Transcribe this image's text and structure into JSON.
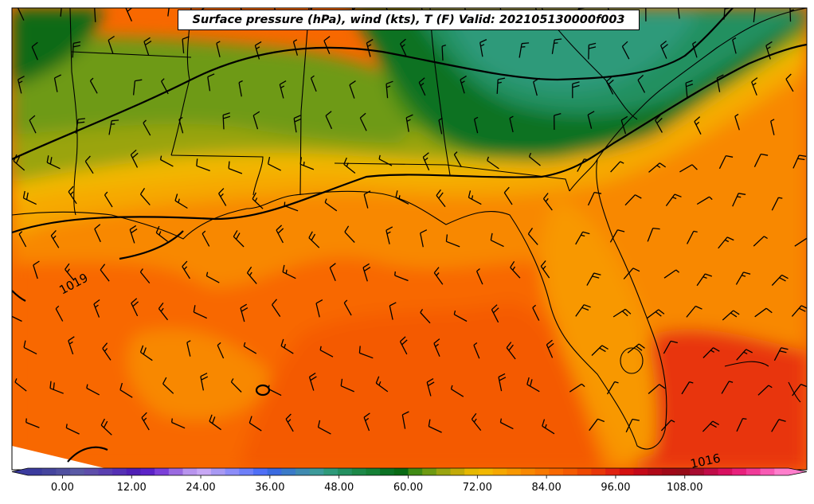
{
  "title": "Surface pressure (hPa), wind (kts), T (F) Valid: 202105130000f003",
  "isobar_labels": [
    {
      "id": "isobar-1019",
      "text": "1019"
    },
    {
      "id": "isobar-1016",
      "text": "1016"
    }
  ],
  "colorbar": {
    "min": -6,
    "max": 126,
    "step": 3,
    "tick_values": [
      0,
      12,
      24,
      36,
      48,
      60,
      72,
      84,
      96,
      108
    ],
    "tick_labels": [
      "0.00",
      "12.00",
      "24.00",
      "36.00",
      "48.00",
      "60.00",
      "72.00",
      "84.00",
      "96.00",
      "108.00"
    ],
    "colors": [
      "#3b3b9e",
      "#45459e",
      "#5050a0",
      "#5a5aa6",
      "#5e4eaa",
      "#5a3fb0",
      "#5430b4",
      "#4f1fb5",
      "#5b22c7",
      "#7b3fd8",
      "#9a6ae0",
      "#b894ee",
      "#c8a8f5",
      "#a899f3",
      "#8c8cf8",
      "#6e7ff8",
      "#4f6ff6",
      "#3a6ae0",
      "#3a7ac8",
      "#3f8ab0",
      "#3c9a9a",
      "#2f9a7a",
      "#249060",
      "#1c8848",
      "#158036",
      "#0c7224",
      "#086a14",
      "#3f8a14",
      "#6e9a12",
      "#9aa410",
      "#c2aa08",
      "#e6b800",
      "#f2b800",
      "#f6a800",
      "#f89800",
      "#f88800",
      "#f87800",
      "#f86800",
      "#f45a00",
      "#ee4800",
      "#e83608",
      "#e02210",
      "#d41010",
      "#c40818",
      "#b00818",
      "#a00818",
      "#980c18",
      "#a80c30",
      "#c00c48",
      "#d81060",
      "#e8207c",
      "#f03a98",
      "#f85ab4",
      "#ff7ecc"
    ]
  }
}
